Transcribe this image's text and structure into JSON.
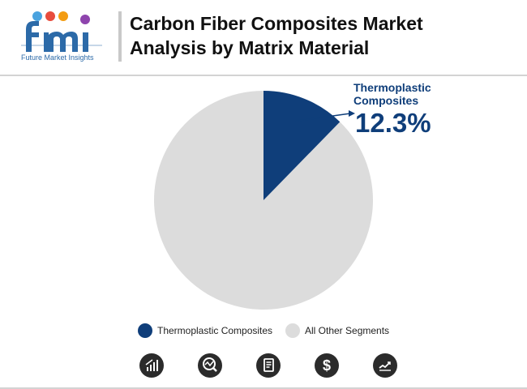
{
  "header": {
    "logo_text": "Future Market Insights",
    "title_line1": "Carbon Fiber Composites Market",
    "title_line2": "Analysis by Matrix Material"
  },
  "chart_data": {
    "type": "pie",
    "slices": [
      {
        "label": "Thermoplastic Composites",
        "value": 12.3,
        "color": "#0f3e7a"
      },
      {
        "label": "All Other Segments",
        "value": 87.7,
        "color": "#dcdcdc"
      }
    ],
    "callout": {
      "label": "Thermoplastic Composites",
      "value_text": "12.3%"
    },
    "legend_position": "bottom"
  },
  "legend": {
    "items": [
      {
        "label": "Thermoplastic Composites",
        "color": "#0f3e7a"
      },
      {
        "label": "All Other Segments",
        "color": "#dcdcdc"
      }
    ]
  },
  "footer_icons": [
    "bar-chart-icon",
    "analysis-icon",
    "report-icon",
    "dollar-icon",
    "trend-line-icon"
  ]
}
